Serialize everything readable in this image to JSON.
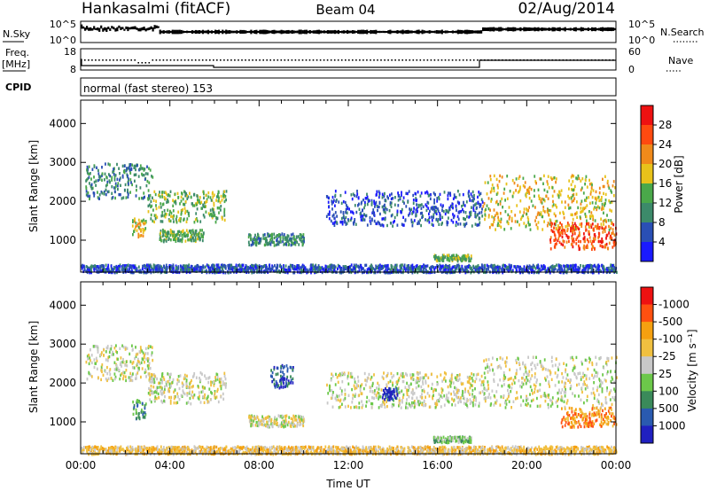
{
  "header": {
    "radar": "Hankasalmi (fitACF)",
    "beam": "Beam 04",
    "date": "02/Aug/2014"
  },
  "strip_labels": {
    "nsky": "N.Sky",
    "nsearch": "N.Search",
    "freq_line1": "Freq.",
    "freq_line2": "[MHz]",
    "nave": "Nave",
    "cpid": "CPID",
    "cpid_text": "normal (fast stereo) 153",
    "noise_ticks_left": [
      "10^5",
      "10^0"
    ],
    "noise_ticks_right": [
      "10^5",
      "10^0"
    ],
    "freq_ticks": [
      "18",
      "8"
    ],
    "nave_ticks": [
      "60",
      "0"
    ]
  },
  "colors": {
    "power": [
      "#1a1aff",
      "#2a4fb5",
      "#3c8a6a",
      "#4aa84a",
      "#e8c21a",
      "#f08a1a",
      "#ff4a10",
      "#ee1111"
    ],
    "velocity": [
      "#ee1111",
      "#ff5010",
      "#f5a010",
      "#f0c040",
      "#c8c8c8",
      "#6cc84a",
      "#3a8a5a",
      "#2a5ab0",
      "#2020c0"
    ]
  },
  "chart_data": [
    {
      "type": "heatmap",
      "name": "Power",
      "ylabel": "Slant Range [km]",
      "ylim": [
        180,
        4600
      ],
      "yticks": [
        "1000",
        "2000",
        "3000",
        "4000"
      ],
      "xlim": [
        0,
        24
      ],
      "colorbar": {
        "label": "Power [dB]",
        "ticks": [
          "4",
          "8",
          "12",
          "16",
          "20",
          "24",
          "28"
        ]
      },
      "echo_regions": [
        {
          "t0": 0.2,
          "t1": 3.2,
          "r0": 2100,
          "r1": 3000,
          "level": 2
        },
        {
          "t0": 3.0,
          "t1": 6.5,
          "r0": 1500,
          "r1": 2300,
          "level": 3
        },
        {
          "t0": 2.3,
          "t1": 2.9,
          "r0": 1100,
          "r1": 1600,
          "level": 4
        },
        {
          "t0": 3.5,
          "t1": 5.5,
          "r0": 1000,
          "r1": 1300,
          "level": 3
        },
        {
          "t0": 7.5,
          "t1": 10.0,
          "r0": 900,
          "r1": 1200,
          "level": 2
        },
        {
          "t0": 11.0,
          "t1": 18.0,
          "r0": 1400,
          "r1": 2300,
          "level": 1
        },
        {
          "t0": 15.8,
          "t1": 17.5,
          "r0": 500,
          "r1": 650,
          "level": 3
        },
        {
          "t0": 18.0,
          "t1": 24.0,
          "r0": 1300,
          "r1": 2700,
          "level": 4
        },
        {
          "t0": 21.0,
          "t1": 24.0,
          "r0": 800,
          "r1": 1500,
          "level": 6
        },
        {
          "t0": 0.0,
          "t1": 24.0,
          "r0": 200,
          "r1": 400,
          "level": 1
        }
      ]
    },
    {
      "type": "heatmap",
      "name": "Velocity",
      "ylabel": "Slant Range [km]",
      "xlabel": "Time UT",
      "ylim": [
        180,
        4600
      ],
      "yticks": [
        "1000",
        "2000",
        "3000",
        "4000"
      ],
      "xlim": [
        0,
        24
      ],
      "xticks": [
        "00:00",
        "04:00",
        "08:00",
        "12:00",
        "16:00",
        "20:00",
        "00:00"
      ],
      "colorbar": {
        "label": "Velocity [m s⁻¹]",
        "ticks": [
          "1000",
          "500",
          "100",
          "25",
          "-25",
          "-100",
          "-500",
          "-1000"
        ]
      },
      "echo_regions": [
        {
          "t0": 0.2,
          "t1": 3.2,
          "r0": 2100,
          "r1": 3000,
          "level": 4
        },
        {
          "t0": 3.0,
          "t1": 6.5,
          "r0": 1500,
          "r1": 2300,
          "level": 4
        },
        {
          "t0": 2.3,
          "t1": 2.9,
          "r0": 1100,
          "r1": 1600,
          "level": 2
        },
        {
          "t0": 7.5,
          "t1": 10.0,
          "r0": 900,
          "r1": 1200,
          "level": 4
        },
        {
          "t0": 8.5,
          "t1": 9.5,
          "r0": 1900,
          "r1": 2500,
          "level": 1
        },
        {
          "t0": 11.0,
          "t1": 18.0,
          "r0": 1400,
          "r1": 2300,
          "level": 4
        },
        {
          "t0": 13.5,
          "t1": 14.2,
          "r0": 1600,
          "r1": 1900,
          "level": 0
        },
        {
          "t0": 15.8,
          "t1": 17.5,
          "r0": 500,
          "r1": 650,
          "level": 3
        },
        {
          "t0": 18.0,
          "t1": 24.0,
          "r0": 1400,
          "r1": 2700,
          "level": 4
        },
        {
          "t0": 21.5,
          "t1": 24.0,
          "r0": 900,
          "r1": 1400,
          "level": 6
        },
        {
          "t0": 0.0,
          "t1": 24.0,
          "r0": 200,
          "r1": 400,
          "level": 5
        }
      ]
    }
  ]
}
